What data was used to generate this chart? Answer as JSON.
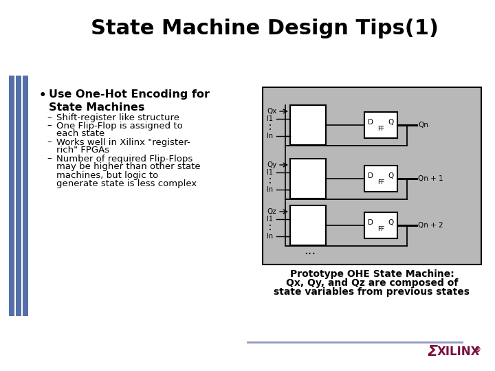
{
  "title": "State Machine Design Tips(1)",
  "title_fontsize": 22,
  "bg_color": "#ffffff",
  "left_bar_color": "#5570a8",
  "bullet_main": "Use One-Hot Encoding for\nState Machines",
  "bullet_main_fontsize": 11.5,
  "sub_bullets": [
    "Shift-register like structure",
    "One Flip-Flop is assigned to each state",
    "Works well in Xilinx \"register-rich\" FPGAs",
    "Number of required Flip-Flops may be higher than other state machines, but logic to generate state is less complex"
  ],
  "sub_fontsize": 9.5,
  "diagram_bg": "#b8b8b8",
  "diagram_border": "#000000",
  "caption_lines": [
    "Prototype OHE State Machine:",
    "Qx, Qy, and Qz are composed of",
    "state variables from previous states"
  ],
  "caption_fontsize": 10,
  "xilinx_color": "#7b1042",
  "line_color": "#9098c0",
  "row_labels": [
    "Qx",
    "Qy",
    "Qz"
  ],
  "ff_outputs": [
    "Qn",
    "Qn + 1",
    "Qn + 2"
  ],
  "dots_label": "..."
}
